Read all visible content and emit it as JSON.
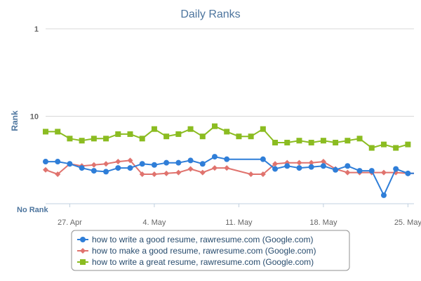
{
  "chart_data": {
    "type": "line",
    "title": "Daily Ranks",
    "xlabel": "",
    "ylabel": "Rank",
    "y_scale": "log",
    "y_reversed": true,
    "ylim": [
      1,
      100
    ],
    "y_ticks": [
      "1",
      "10",
      "100"
    ],
    "no_rank_label": "No Rank",
    "x_tick_labels": [
      "27. Apr",
      "4. May",
      "11. May",
      "18. May",
      "25. May"
    ],
    "x_tick_days": [
      2,
      9,
      16,
      23,
      30
    ],
    "x_range_days": [
      0,
      30.5
    ],
    "grid": "horizontal",
    "legend_position": "bottom",
    "series": [
      {
        "name": "how to write a good resume, rawresume.com (Google.com)",
        "color": "#2f7ed8",
        "marker": "circle",
        "points": [
          [
            0,
            33
          ],
          [
            1,
            33
          ],
          [
            2,
            35
          ],
          [
            3,
            39
          ],
          [
            4,
            42
          ],
          [
            5,
            43
          ],
          [
            6,
            39
          ],
          [
            7,
            39
          ],
          [
            8,
            35
          ],
          [
            9,
            36
          ],
          [
            10,
            34
          ],
          [
            11,
            34
          ],
          [
            12,
            32
          ],
          [
            13,
            35
          ],
          [
            14,
            29
          ],
          [
            15,
            31
          ],
          [
            18,
            31
          ],
          [
            19,
            40
          ],
          [
            20,
            37
          ],
          [
            21,
            39
          ],
          [
            22,
            38
          ],
          [
            23,
            37
          ],
          [
            24,
            41
          ],
          [
            25,
            37
          ],
          [
            26,
            42
          ],
          [
            27,
            42
          ],
          [
            28,
            80
          ],
          [
            29,
            40
          ],
          [
            30,
            45
          ],
          [
            30.5,
            45
          ]
        ]
      },
      {
        "name": "how to make a good resume, rawresume.com (Google.com)",
        "color": "#e0736e",
        "marker": "diamond",
        "points": [
          [
            0,
            41
          ],
          [
            1,
            46
          ],
          [
            2,
            35
          ],
          [
            3,
            37
          ],
          [
            4,
            36
          ],
          [
            5,
            35
          ],
          [
            6,
            33
          ],
          [
            7,
            32
          ],
          [
            8,
            46
          ],
          [
            9,
            46
          ],
          [
            10,
            45
          ],
          [
            11,
            44
          ],
          [
            12,
            40
          ],
          [
            13,
            44
          ],
          [
            14,
            39
          ],
          [
            15,
            39
          ],
          [
            17,
            46
          ],
          [
            18,
            46
          ],
          [
            19,
            35
          ],
          [
            20,
            34
          ],
          [
            21,
            34
          ],
          [
            22,
            34
          ],
          [
            23,
            33
          ],
          [
            24,
            40
          ],
          [
            25,
            44
          ],
          [
            26,
            44
          ],
          [
            27,
            44
          ],
          [
            28,
            44
          ],
          [
            29,
            44
          ],
          [
            30,
            45
          ],
          [
            30.5,
            45
          ]
        ]
      },
      {
        "name": "how to write a great resume, rawresume.com (Google.com)",
        "color": "#8bbc21",
        "marker": "square",
        "points": [
          [
            0,
            15
          ],
          [
            1,
            15
          ],
          [
            2,
            18
          ],
          [
            3,
            19
          ],
          [
            4,
            18
          ],
          [
            5,
            18
          ],
          [
            6,
            16
          ],
          [
            7,
            16
          ],
          [
            8,
            18
          ],
          [
            9,
            14
          ],
          [
            10,
            17
          ],
          [
            11,
            16
          ],
          [
            12,
            14
          ],
          [
            13,
            17
          ],
          [
            14,
            13
          ],
          [
            15,
            15
          ],
          [
            16,
            17
          ],
          [
            17,
            17
          ],
          [
            18,
            14
          ],
          [
            19,
            20
          ],
          [
            20,
            20
          ],
          [
            21,
            19
          ],
          [
            22,
            20
          ],
          [
            23,
            19
          ],
          [
            24,
            20
          ],
          [
            25,
            19
          ],
          [
            26,
            18
          ],
          [
            27,
            23
          ],
          [
            28,
            21
          ],
          [
            29,
            23
          ],
          [
            30,
            21
          ]
        ]
      }
    ]
  }
}
